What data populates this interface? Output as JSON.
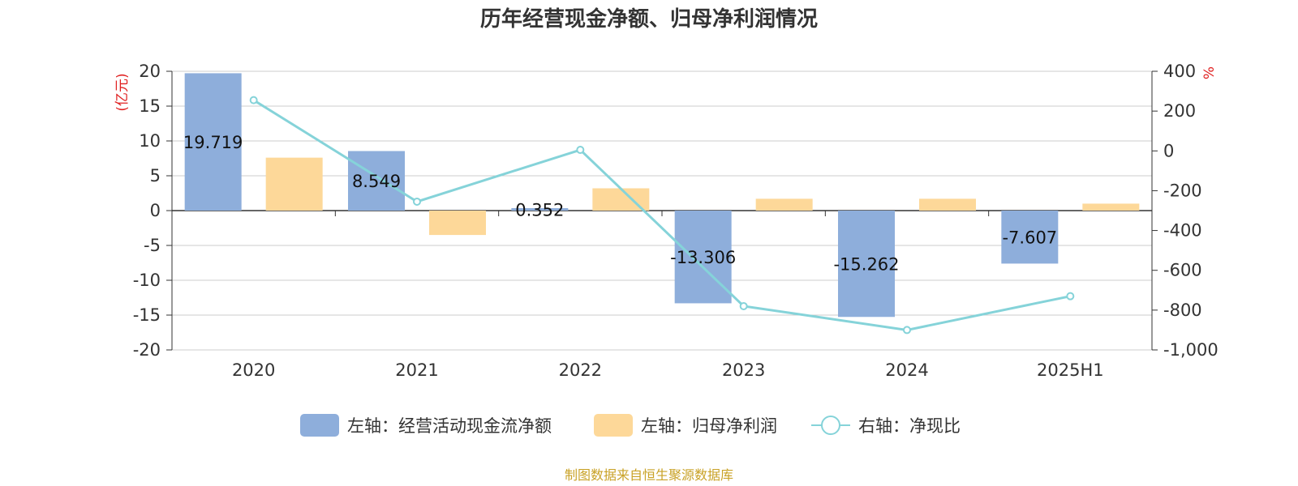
{
  "chart_data": {
    "type": "bar",
    "title": "历年经营现金净额、归母净利润情况",
    "categories": [
      "2020",
      "2021",
      "2022",
      "2023",
      "2024",
      "2025H1"
    ],
    "series": [
      {
        "name": "左轴：经营活动现金流净额",
        "type": "bar",
        "axis": "left",
        "color": "#8eaedb",
        "values": [
          19.719,
          8.549,
          0.352,
          -13.306,
          -15.262,
          -7.607
        ],
        "labels": [
          "19.719",
          "8.549",
          "0.352",
          "-13.306",
          "-15.262",
          "-7.607"
        ]
      },
      {
        "name": "左轴：归母净利润",
        "type": "bar",
        "axis": "left",
        "color": "#fdd899",
        "values": [
          7.6,
          -3.5,
          3.2,
          1.7,
          1.7,
          1.0
        ]
      },
      {
        "name": "右轴：净现比",
        "type": "line",
        "axis": "right",
        "color": "#85d3d9",
        "values": [
          255,
          -255,
          5,
          -780,
          -900,
          -730
        ]
      }
    ],
    "left_axis": {
      "unit": "(亿元)",
      "ylim": [
        -20,
        20
      ],
      "ticks": [
        20,
        15,
        10,
        5,
        0,
        -5,
        -10,
        -15,
        -20
      ],
      "tick_labels": [
        "20",
        "15",
        "10",
        "5",
        "0",
        "-5",
        "-10",
        "-15",
        "-20"
      ]
    },
    "right_axis": {
      "unit": "%",
      "ylim": [
        -1000,
        400
      ],
      "ticks": [
        400,
        200,
        0,
        -200,
        -400,
        -600,
        -800,
        -1000
      ],
      "tick_labels": [
        "400",
        "200",
        "0",
        "-200",
        "-400",
        "-600",
        "-800",
        "-1,000"
      ]
    },
    "grid": true,
    "legend_position": "bottom",
    "source": "制图数据来自恒生聚源数据库",
    "axis_label_color": "#e02020",
    "source_color": "#c9a227"
  }
}
